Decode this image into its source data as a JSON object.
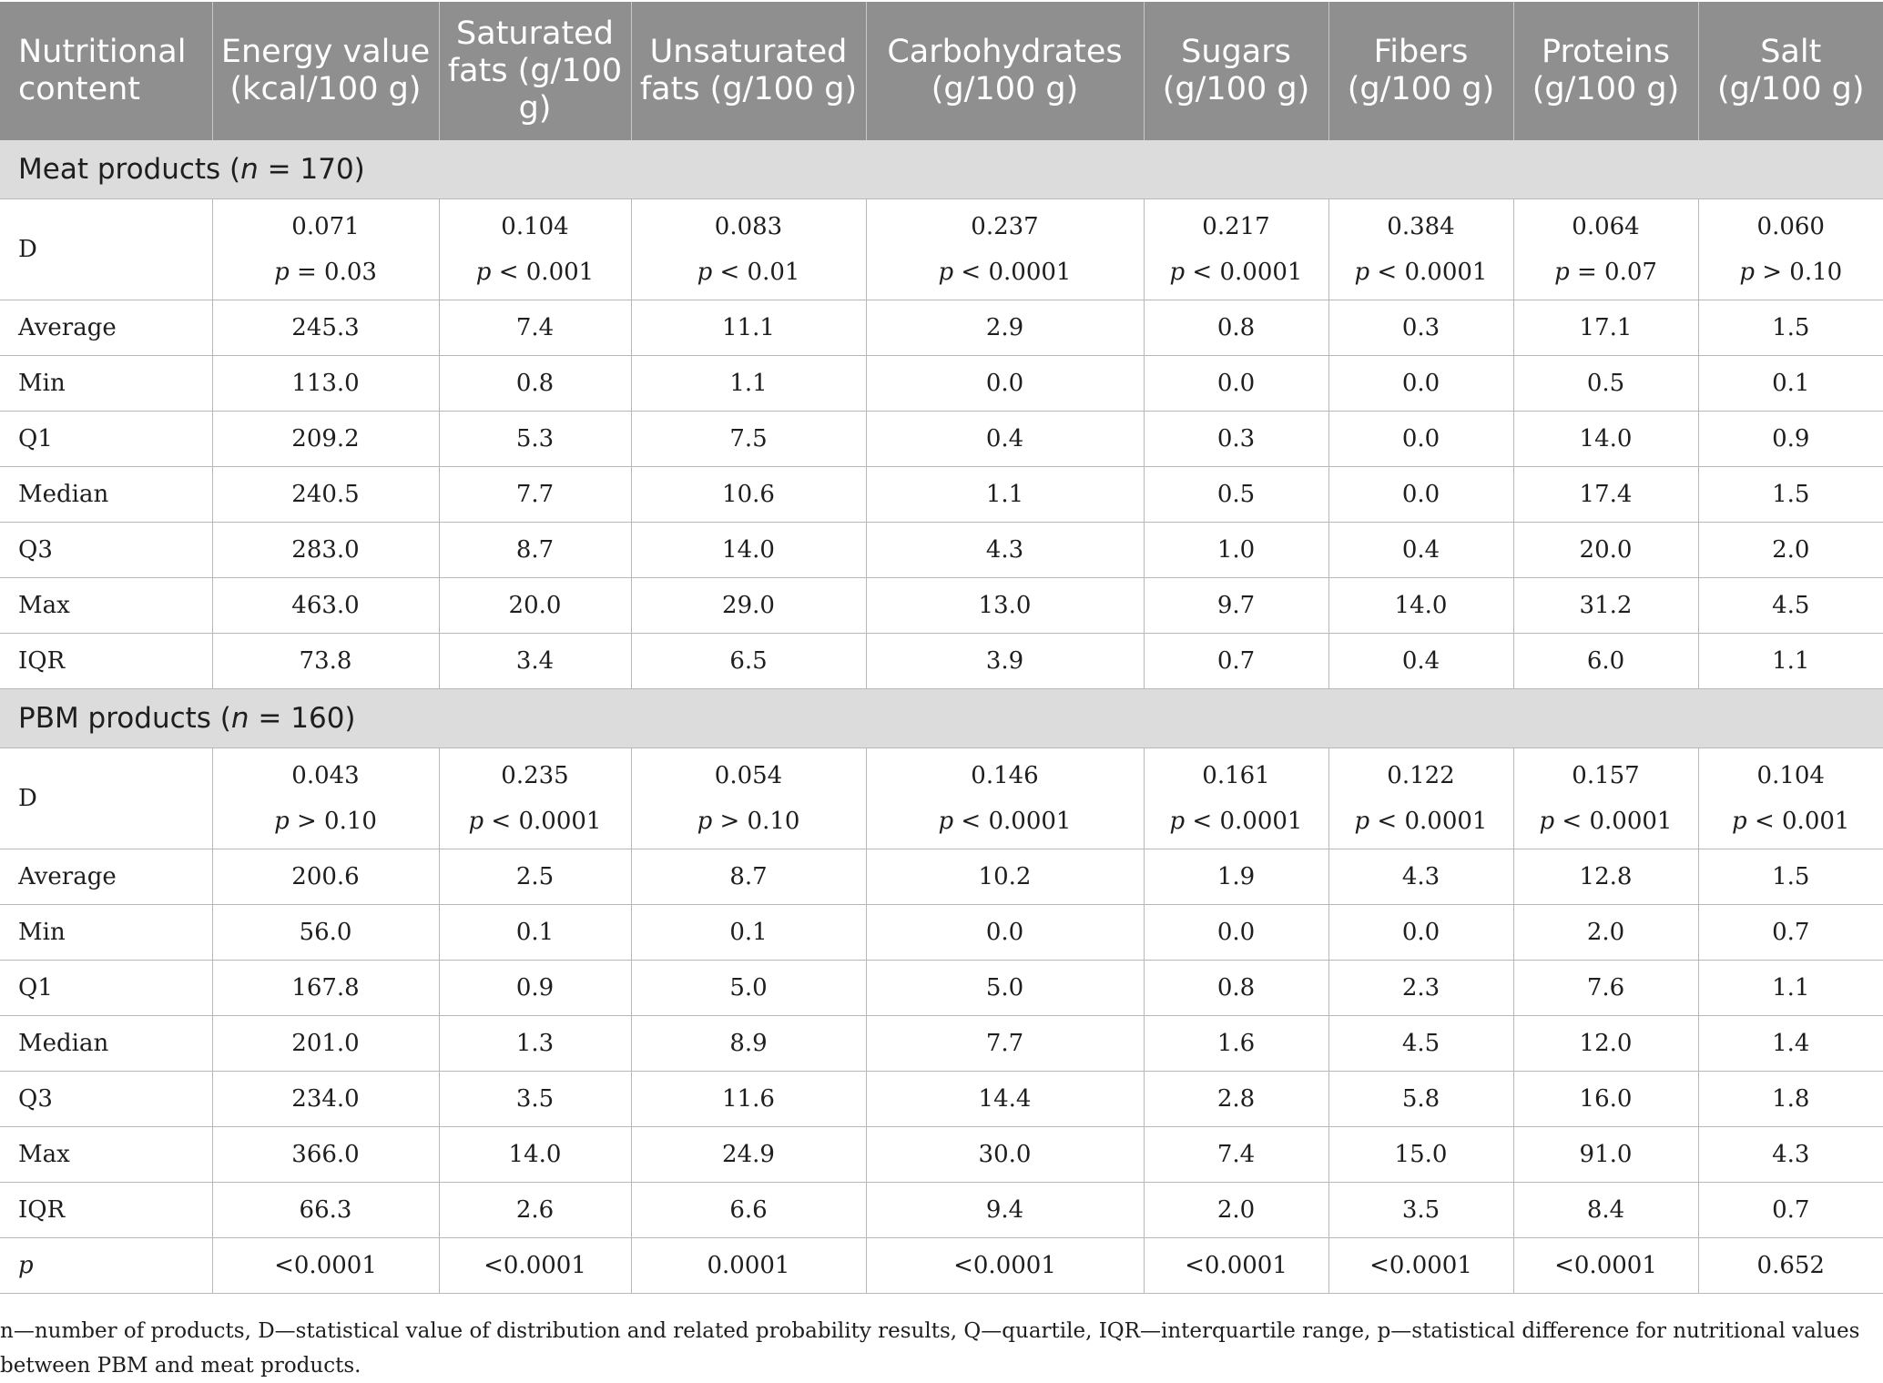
{
  "headers": [
    "Nutritional content",
    "Energy value (kcal/100 g)",
    "Saturated fats (g/100 g)",
    "Unsaturated fats (g/100 g)",
    "Carbohydrates (g/100 g)",
    "Sugars (g/100 g)",
    "Fibers (g/100 g)",
    "Proteins (g/100 g)",
    "Salt (g/100 g)"
  ],
  "sections": [
    {
      "label_pre": "Meat products (",
      "label_n": "n",
      "label_post": " = 170)",
      "d_label": "D",
      "d_values": [
        "0.071",
        "0.104",
        "0.083",
        "0.237",
        "0.217",
        "0.384",
        "0.064",
        "0.060"
      ],
      "p_symbol": "p",
      "p_values": [
        " = 0.03",
        " < 0.001",
        " < 0.01",
        " < 0.0001",
        " < 0.0001",
        " < 0.0001",
        " = 0.07",
        " > 0.10"
      ],
      "rows": [
        {
          "label": "Average",
          "values": [
            "245.3",
            "7.4",
            "11.1",
            "2.9",
            "0.8",
            "0.3",
            "17.1",
            "1.5"
          ]
        },
        {
          "label": "Min",
          "values": [
            "113.0",
            "0.8",
            "1.1",
            "0.0",
            "0.0",
            "0.0",
            "0.5",
            "0.1"
          ]
        },
        {
          "label": "Q1",
          "values": [
            "209.2",
            "5.3",
            "7.5",
            "0.4",
            "0.3",
            "0.0",
            "14.0",
            "0.9"
          ]
        },
        {
          "label": "Median",
          "values": [
            "240.5",
            "7.7",
            "10.6",
            "1.1",
            "0.5",
            "0.0",
            "17.4",
            "1.5"
          ]
        },
        {
          "label": "Q3",
          "values": [
            "283.0",
            "8.7",
            "14.0",
            "4.3",
            "1.0",
            "0.4",
            "20.0",
            "2.0"
          ]
        },
        {
          "label": "Max",
          "values": [
            "463.0",
            "20.0",
            "29.0",
            "13.0",
            "9.7",
            "14.0",
            "31.2",
            "4.5"
          ]
        },
        {
          "label": "IQR",
          "values": [
            "73.8",
            "3.4",
            "6.5",
            "3.9",
            "0.7",
            "0.4",
            "6.0",
            "1.1"
          ]
        }
      ]
    },
    {
      "label_pre": "PBM products (",
      "label_n": "n",
      "label_post": " = 160)",
      "d_label": "D",
      "d_values": [
        "0.043",
        "0.235",
        "0.054",
        "0.146",
        "0.161",
        "0.122",
        "0.157",
        "0.104"
      ],
      "p_symbol": "p",
      "p_values": [
        " > 0.10",
        " < 0.0001",
        " > 0.10",
        " < 0.0001",
        " < 0.0001",
        " < 0.0001",
        " < 0.0001",
        " < 0.001"
      ],
      "rows": [
        {
          "label": "Average",
          "values": [
            "200.6",
            "2.5",
            "8.7",
            "10.2",
            "1.9",
            "4.3",
            "12.8",
            "1.5"
          ]
        },
        {
          "label": "Min",
          "values": [
            "56.0",
            "0.1",
            "0.1",
            "0.0",
            "0.0",
            "0.0",
            "2.0",
            "0.7"
          ]
        },
        {
          "label": "Q1",
          "values": [
            "167.8",
            "0.9",
            "5.0",
            "5.0",
            "0.8",
            "2.3",
            "7.6",
            "1.1"
          ]
        },
        {
          "label": "Median",
          "values": [
            "201.0",
            "1.3",
            "8.9",
            "7.7",
            "1.6",
            "4.5",
            "12.0",
            "1.4"
          ]
        },
        {
          "label": "Q3",
          "values": [
            "234.0",
            "3.5",
            "11.6",
            "14.4",
            "2.8",
            "5.8",
            "16.0",
            "1.8"
          ]
        },
        {
          "label": "Max",
          "values": [
            "366.0",
            "14.0",
            "24.9",
            "30.0",
            "7.4",
            "15.0",
            "91.0",
            "4.3"
          ]
        },
        {
          "label": "IQR",
          "values": [
            "66.3",
            "2.6",
            "6.6",
            "9.4",
            "2.0",
            "3.5",
            "8.4",
            "0.7"
          ]
        }
      ]
    }
  ],
  "p_row": {
    "label": "p",
    "values": [
      "<0.0001",
      "<0.0001",
      "0.0001",
      "<0.0001",
      "<0.0001",
      "<0.0001",
      "<0.0001",
      "0.652"
    ]
  },
  "footnote": "n—number of products, D—statistical value of distribution and related probability results, Q—quartile, IQR—interquartile range, p—statistical difference for nutritional values between PBM and meat products.",
  "colors": {
    "header_bg": "#8f8f8f",
    "section_bg": "#dcdcdc",
    "grid_line": "#b8b8b8"
  }
}
